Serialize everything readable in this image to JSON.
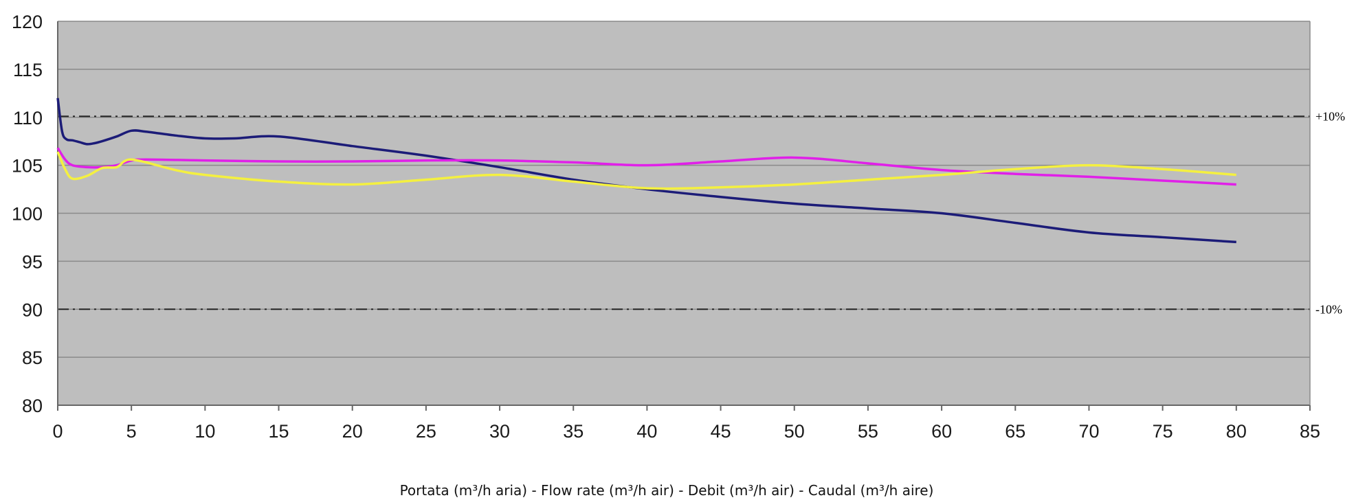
{
  "colors": {
    "background": "#ffffff",
    "plot_area": "#bebebe",
    "gridline": "#8a8a8a",
    "reference_line": "#222222",
    "axis": "#666666"
  },
  "chart_data": {
    "type": "line",
    "title": "",
    "xlabel": "Portata (m³/h aria) - Flow rate (m³/h air) - Debit (m³/h air) - Caudal (m³/h aire)",
    "ylabel": "",
    "xlim": [
      0,
      85
    ],
    "ylim": [
      80,
      120
    ],
    "xticks": [
      "0",
      "5",
      "10",
      "15",
      "20",
      "25",
      "30",
      "35",
      "40",
      "45",
      "50",
      "55",
      "60",
      "65",
      "70",
      "75",
      "80",
      "85"
    ],
    "yticks": [
      "80",
      "85",
      "90",
      "95",
      "100",
      "105",
      "110",
      "115",
      "120"
    ],
    "grid": "horizontal",
    "legend": "none",
    "reference_lines": [
      {
        "label": "+10%",
        "y": 110.1
      },
      {
        "label": "-10%",
        "y": 90.0
      }
    ],
    "series": [
      {
        "color": "#1c1c78",
        "x": [
          0,
          0.3,
          0.6,
          1,
          1.5,
          2,
          2.5,
          3,
          4,
          5,
          6,
          8,
          10,
          12,
          15,
          20,
          25,
          30,
          35,
          40,
          45,
          50,
          55,
          60,
          65,
          70,
          75,
          80
        ],
        "y": [
          112,
          108.5,
          107.7,
          107.6,
          107.4,
          107.2,
          107.3,
          107.5,
          108.0,
          108.6,
          108.5,
          108.1,
          107.8,
          107.8,
          108.0,
          107.0,
          106.0,
          104.8,
          103.5,
          102.5,
          101.7,
          101.0,
          100.5,
          100.0,
          99.0,
          98.0,
          97.5,
          97.0
        ]
      },
      {
        "color": "#e020e8",
        "x": [
          0,
          0.5,
          1,
          2,
          3,
          4,
          5,
          6,
          10,
          15,
          20,
          25,
          30,
          35,
          40,
          45,
          50,
          55,
          60,
          65,
          70,
          75,
          80
        ],
        "y": [
          106.8,
          105.6,
          105.0,
          104.8,
          104.8,
          105.0,
          105.5,
          105.6,
          105.5,
          105.4,
          105.4,
          105.5,
          105.5,
          105.3,
          105.0,
          105.4,
          105.8,
          105.2,
          104.5,
          104.1,
          103.8,
          103.4,
          103.0
        ]
      },
      {
        "color": "#f4f040",
        "x": [
          0,
          0.5,
          1,
          2,
          3,
          4,
          4.5,
          5,
          6,
          8,
          10,
          15,
          20,
          25,
          30,
          35,
          40,
          45,
          50,
          55,
          60,
          65,
          70,
          75,
          80
        ],
        "y": [
          106.4,
          104.6,
          103.6,
          103.9,
          104.7,
          104.8,
          105.4,
          105.6,
          105.3,
          104.5,
          104.0,
          103.3,
          103.0,
          103.5,
          104.0,
          103.3,
          102.6,
          102.7,
          103.0,
          103.5,
          104.0,
          104.6,
          105.0,
          104.6,
          104.0
        ]
      }
    ]
  }
}
